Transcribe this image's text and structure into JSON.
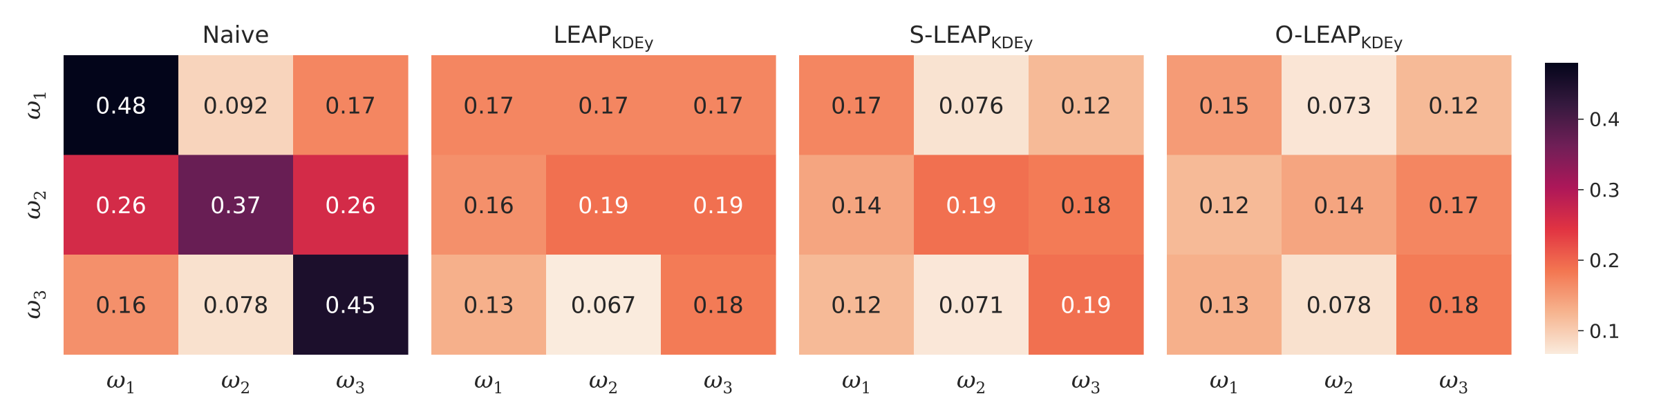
{
  "chart_data": [
    {
      "type": "heatmap",
      "title": "Naive",
      "title_sub": "",
      "rows": [
        "ω1",
        "ω2",
        "ω3"
      ],
      "cols": [
        "ω1",
        "ω2",
        "ω3"
      ],
      "values": [
        [
          0.48,
          0.092,
          0.17
        ],
        [
          0.26,
          0.37,
          0.26
        ],
        [
          0.16,
          0.078,
          0.45
        ]
      ],
      "value_labels": [
        [
          "0.48",
          "0.092",
          "0.17"
        ],
        [
          "0.26",
          "0.37",
          "0.26"
        ],
        [
          "0.16",
          "0.078",
          "0.45"
        ]
      ]
    },
    {
      "type": "heatmap",
      "title": "LEAP",
      "title_sub": "KDEy",
      "rows": [
        "ω1",
        "ω2",
        "ω3"
      ],
      "cols": [
        "ω1",
        "ω2",
        "ω3"
      ],
      "values": [
        [
          0.17,
          0.17,
          0.17
        ],
        [
          0.16,
          0.19,
          0.19
        ],
        [
          0.13,
          0.067,
          0.18
        ]
      ],
      "value_labels": [
        [
          "0.17",
          "0.17",
          "0.17"
        ],
        [
          "0.16",
          "0.19",
          "0.19"
        ],
        [
          "0.13",
          "0.067",
          "0.18"
        ]
      ]
    },
    {
      "type": "heatmap",
      "title": "S-LEAP",
      "title_sub": "KDEy",
      "rows": [
        "ω1",
        "ω2",
        "ω3"
      ],
      "cols": [
        "ω1",
        "ω2",
        "ω3"
      ],
      "values": [
        [
          0.17,
          0.076,
          0.12
        ],
        [
          0.14,
          0.19,
          0.18
        ],
        [
          0.12,
          0.071,
          0.19
        ]
      ],
      "value_labels": [
        [
          "0.17",
          "0.076",
          "0.12"
        ],
        [
          "0.14",
          "0.19",
          "0.18"
        ],
        [
          "0.12",
          "0.071",
          "0.19"
        ]
      ]
    },
    {
      "type": "heatmap",
      "title": "O-LEAP",
      "title_sub": "KDEy",
      "rows": [
        "ω1",
        "ω2",
        "ω3"
      ],
      "cols": [
        "ω1",
        "ω2",
        "ω3"
      ],
      "values": [
        [
          0.15,
          0.073,
          0.12
        ],
        [
          0.12,
          0.14,
          0.17
        ],
        [
          0.13,
          0.078,
          0.18
        ]
      ],
      "value_labels": [
        [
          "0.15",
          "0.073",
          "0.12"
        ],
        [
          "0.12",
          "0.14",
          "0.17"
        ],
        [
          "0.13",
          "0.078",
          "0.18"
        ]
      ]
    }
  ],
  "colorbar": {
    "vmin": 0.067,
    "vmax": 0.48,
    "ticks": [
      0.1,
      0.2,
      0.3,
      0.4
    ],
    "tick_labels": [
      "0.1",
      "0.2",
      "0.3",
      "0.4"
    ],
    "colormap": "rocket_r",
    "colors": [
      "#faebdd",
      "#f6b48f",
      "#f37651",
      "#e13342",
      "#ad1759",
      "#701f57",
      "#35193e",
      "#03051a"
    ]
  }
}
